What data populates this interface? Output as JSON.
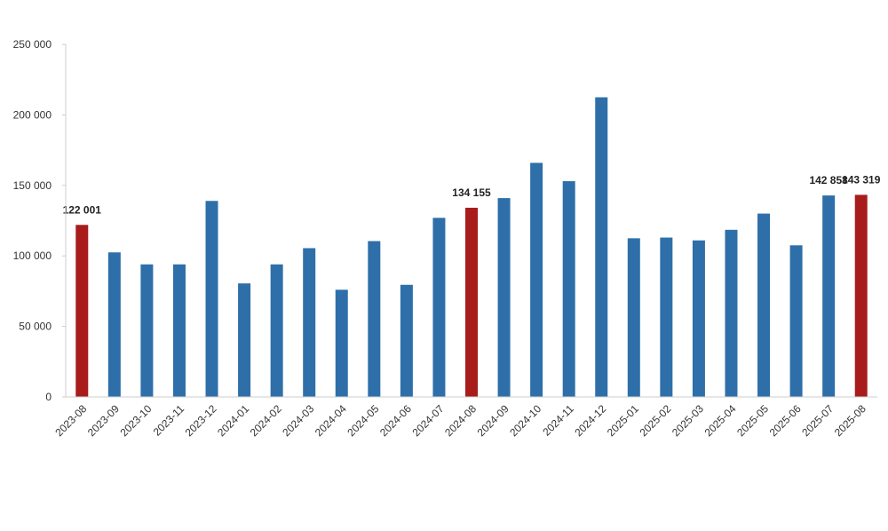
{
  "chart_data": {
    "type": "bar",
    "title": "",
    "xlabel": "",
    "ylabel": "",
    "ylim": [
      0,
      250000
    ],
    "yticks": [
      0,
      50000,
      100000,
      150000,
      200000,
      250000
    ],
    "ytick_labels": [
      "0",
      "50 000",
      "100 000",
      "150 000",
      "200 000",
      "250 000"
    ],
    "grid": false,
    "legend": "none",
    "colors": {
      "default": "#2e6fa9",
      "highlight": "#a81c1c",
      "axis": "#cccccc"
    },
    "categories": [
      "2023-08",
      "2023-09",
      "2023-10",
      "2023-11",
      "2023-12",
      "2024-01",
      "2024-02",
      "2024-03",
      "2024-04",
      "2024-05",
      "2024-06",
      "2024-07",
      "2024-08",
      "2024-09",
      "2024-10",
      "2024-11",
      "2024-12",
      "2025-01",
      "2025-02",
      "2025-03",
      "2025-04",
      "2025-05",
      "2025-06",
      "2025-07",
      "2025-08"
    ],
    "values": [
      122001,
      102500,
      94000,
      94000,
      139000,
      80500,
      94000,
      105500,
      76000,
      110500,
      79500,
      127000,
      134155,
      141000,
      166000,
      153000,
      212500,
      112500,
      113000,
      111000,
      118500,
      130000,
      107500,
      142858,
      143319
    ],
    "highlighted": [
      true,
      false,
      false,
      false,
      false,
      false,
      false,
      false,
      false,
      false,
      false,
      false,
      true,
      false,
      false,
      false,
      false,
      false,
      false,
      false,
      false,
      false,
      false,
      false,
      true
    ],
    "data_labels": [
      "122 001",
      "",
      "",
      "",
      "",
      "",
      "",
      "",
      "",
      "",
      "",
      "",
      "134 155",
      "",
      "",
      "",
      "",
      "",
      "",
      "",
      "",
      "",
      "",
      "142 858",
      "143 319"
    ]
  }
}
